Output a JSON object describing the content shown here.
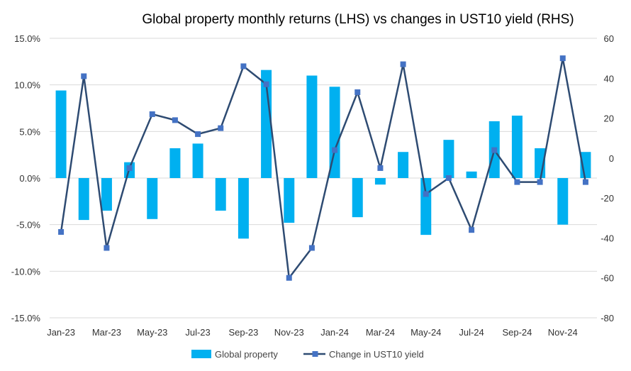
{
  "chart_data": {
    "type": "bar",
    "title": "Global property monthly returns (LHS) vs changes in UST10 yield (RHS)",
    "categories": [
      "Jan-23",
      "Feb-23",
      "Mar-23",
      "Apr-23",
      "May-23",
      "Jun-23",
      "Jul-23",
      "Aug-23",
      "Sep-23",
      "Oct-23",
      "Nov-23",
      "Dec-23",
      "Jan-24",
      "Feb-24",
      "Mar-24",
      "Apr-24",
      "May-24",
      "Jun-24",
      "Jul-24",
      "Aug-24",
      "Sep-24",
      "Oct-24",
      "Nov-24",
      "Dec-24"
    ],
    "x_tick_labels": [
      "Jan-23",
      "Mar-23",
      "May-23",
      "Jul-23",
      "Sep-23",
      "Nov-23",
      "Jan-24",
      "Mar-24",
      "May-24",
      "Jul-24",
      "Sep-24",
      "Nov-24"
    ],
    "left_axis": {
      "ylim": [
        -15,
        15
      ],
      "ticks": [
        15,
        10,
        5,
        0,
        -5,
        -10,
        -15
      ],
      "tick_labels": [
        "15.0%",
        "10.0%",
        "5.0%",
        "0.0%",
        "-5.0%",
        "-10.0%",
        "-15.0%"
      ]
    },
    "right_axis": {
      "ylim": [
        -80,
        60
      ],
      "ticks": [
        60,
        40,
        20,
        0,
        -20,
        -40,
        -60,
        -80
      ],
      "tick_labels": [
        "60",
        "40",
        "20",
        "0",
        "-20",
        "-40",
        "-60",
        "-80"
      ]
    },
    "grid": true,
    "legend_position": "bottom",
    "series": [
      {
        "name": "Global property",
        "type": "bar",
        "axis": "left",
        "color": "#00b0f0",
        "values": [
          9.4,
          -4.5,
          -3.5,
          1.7,
          -4.4,
          3.2,
          3.7,
          -3.5,
          -6.5,
          11.6,
          -4.8,
          11.0,
          9.8,
          -4.2,
          -0.7,
          2.8,
          -6.1,
          4.1,
          0.7,
          6.1,
          6.7,
          3.2,
          -5.0,
          2.8
        ]
      },
      {
        "name": "Change in UST10 yield",
        "type": "line",
        "axis": "right",
        "color": "#2e4b72",
        "values": [
          -37,
          41,
          -45,
          -5,
          22,
          19,
          12,
          15,
          46,
          37,
          -60,
          -45,
          4,
          33,
          -5,
          47,
          -18,
          -10,
          -36,
          4,
          -12,
          -12,
          50,
          -12
        ]
      }
    ]
  }
}
